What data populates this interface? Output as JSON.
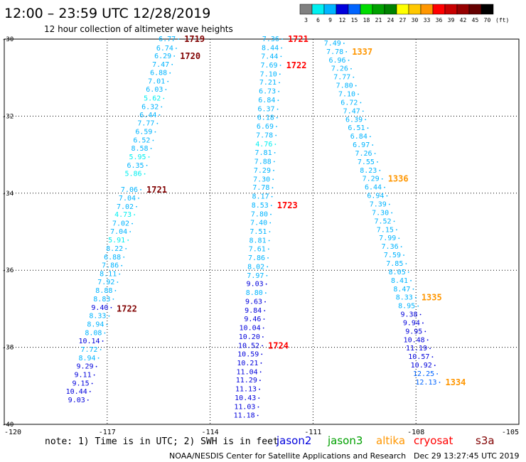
{
  "header": {
    "title": "12:00 – 23:59 UTC 12/28/2019",
    "subtitle": "12 hour collection of altimeter wave heights"
  },
  "color_scale": {
    "unit": "(ft)",
    "ticks": [
      "3",
      "6",
      "9",
      "12",
      "15",
      "18",
      "21",
      "24",
      "27",
      "30",
      "33",
      "36",
      "39",
      "42",
      "45",
      "70"
    ],
    "colors": [
      "#808080",
      "#00f0f0",
      "#00b4ff",
      "#0000dc",
      "#0064ff",
      "#00dc00",
      "#00a000",
      "#008200",
      "#ffff00",
      "#ffc800",
      "#ff9600",
      "#ff0000",
      "#c80000",
      "#960000",
      "#640000",
      "#000000"
    ]
  },
  "footer": {
    "note": "note: 1) Time is in UTC; 2) SWH is in feet",
    "legend": [
      {
        "name": "jason2",
        "color": "#0000dc"
      },
      {
        "name": "jason3",
        "color": "#00a000"
      },
      {
        "name": "altika",
        "color": "#ff9600"
      },
      {
        "name": "cryosat",
        "color": "#ff0000"
      },
      {
        "name": "s3a",
        "color": "#800000"
      }
    ],
    "credit": "NOAA/NESDIS Center for Satellite Applications and Research",
    "timestamp": "Dec 29 13:27:45 UTC 2019"
  },
  "chart_data": {
    "type": "scatter",
    "title": "12:00 – 23:59 UTC 12/28/2019",
    "subtitle": "12 hour collection of altimeter wave heights",
    "xlim": [
      -120,
      -105
    ],
    "ylim": [
      -40,
      -30
    ],
    "x_ticks": [
      -120,
      -117,
      -114,
      -111,
      -108,
      -105
    ],
    "x_tick_labels": [
      "-120",
      "-117",
      "-114",
      "-111",
      "-108",
      "-105"
    ],
    "y_ticks": [
      -30,
      -32,
      -34,
      -36,
      -38,
      -40
    ],
    "y_tick_labels": [
      "-30",
      "-32",
      "-34",
      "-36",
      "-38",
      "-40"
    ],
    "grid": true,
    "color_by_swh": [
      {
        "max": 6,
        "color": "#00f0f0"
      },
      {
        "max": 9,
        "color": "#00b4ff"
      },
      {
        "max": 12,
        "color": "#0000dc"
      },
      {
        "max": 15,
        "color": "#0064ff"
      },
      {
        "max": 18,
        "color": "#00dc00"
      }
    ],
    "tracks": [
      {
        "lon_start": -114.92,
        "lon_end": -117.56,
        "points": [
          {
            "lat": -30.0,
            "swh": "6.77"
          },
          {
            "lat": -30.24,
            "swh": "6.74"
          },
          {
            "lat": -30.44,
            "swh": "6.29"
          },
          {
            "lat": -30.66,
            "swh": "7.47"
          },
          {
            "lat": -30.88,
            "swh": "6.88"
          },
          {
            "lat": -31.1,
            "swh": "7.01"
          },
          {
            "lat": -31.31,
            "swh": "6.03"
          },
          {
            "lat": -31.54,
            "swh": "5.62"
          },
          {
            "lat": -31.76,
            "swh": "6.32"
          },
          {
            "lat": -31.97,
            "swh": "6.44"
          },
          {
            "lat": -32.19,
            "swh": "7.77"
          },
          {
            "lat": -32.41,
            "swh": "6.59"
          },
          {
            "lat": -32.63,
            "swh": "6.52"
          },
          {
            "lat": -32.84,
            "swh": "8.58"
          },
          {
            "lat": -33.06,
            "swh": "5.95"
          },
          {
            "lat": -33.28,
            "swh": "6.35"
          },
          {
            "lat": -33.5,
            "swh": "5.86"
          },
          {
            "lat": -33.91,
            "swh": "7.06"
          },
          {
            "lat": -34.13,
            "swh": "7.04"
          },
          {
            "lat": -34.35,
            "swh": "7.02"
          },
          {
            "lat": -34.56,
            "swh": "4.73"
          },
          {
            "lat": -34.79,
            "swh": "7.02"
          },
          {
            "lat": -35.0,
            "swh": "7.04"
          },
          {
            "lat": -35.22,
            "swh": "5.91"
          },
          {
            "lat": -35.44,
            "swh": "8.22"
          },
          {
            "lat": -35.66,
            "swh": "6.88"
          },
          {
            "lat": -35.88,
            "swh": "7.86"
          },
          {
            "lat": -36.1,
            "swh": "8.11"
          },
          {
            "lat": -36.31,
            "swh": "7.92"
          },
          {
            "lat": -36.53,
            "swh": "8.88"
          },
          {
            "lat": -36.75,
            "swh": "8.83"
          },
          {
            "lat": -36.97,
            "swh": "9.40"
          },
          {
            "lat": -37.19,
            "swh": "8.33"
          },
          {
            "lat": -37.41,
            "swh": "8.94"
          },
          {
            "lat": -37.63,
            "swh": "8.08"
          },
          {
            "lat": -37.84,
            "swh": "10.14"
          },
          {
            "lat": -38.06,
            "swh": "7.72"
          },
          {
            "lat": -38.28,
            "swh": "8.94"
          },
          {
            "lat": -38.5,
            "swh": "9.29"
          },
          {
            "lat": -38.72,
            "swh": "9.11"
          },
          {
            "lat": -38.94,
            "swh": "9.15"
          },
          {
            "lat": -39.15,
            "swh": "10.44"
          },
          {
            "lat": -39.37,
            "swh": "9.03"
          }
        ],
        "times": [
          {
            "lat": -30.0,
            "label": "1719",
            "color": "#800000"
          },
          {
            "lat": -30.44,
            "label": "1720",
            "color": "#800000"
          },
          {
            "lat": -33.91,
            "label": "1721",
            "color": "#800000"
          },
          {
            "lat": -37.0,
            "label": "1722",
            "color": "#800000"
          }
        ]
      },
      {
        "lon_start": -111.9,
        "lon_end": -112.61,
        "points": [
          {
            "lat": -30.0,
            "swh": "7.36"
          },
          {
            "lat": -30.23,
            "swh": "8.44"
          },
          {
            "lat": -30.45,
            "swh": "7.44"
          },
          {
            "lat": -30.68,
            "swh": "7.69"
          },
          {
            "lat": -30.91,
            "swh": "7.10"
          },
          {
            "lat": -31.13,
            "swh": "7.21"
          },
          {
            "lat": -31.36,
            "swh": "6.73"
          },
          {
            "lat": -31.59,
            "swh": "6.84"
          },
          {
            "lat": -31.82,
            "swh": "6.37"
          },
          {
            "lat": -32.04,
            "swh": "6.18"
          },
          {
            "lat": -32.27,
            "swh": "6.69"
          },
          {
            "lat": -32.5,
            "swh": "7.78"
          },
          {
            "lat": -32.73,
            "swh": "4.76"
          },
          {
            "lat": -32.95,
            "swh": "7.81"
          },
          {
            "lat": -33.18,
            "swh": "7.88"
          },
          {
            "lat": -33.41,
            "swh": "7.29"
          },
          {
            "lat": -33.64,
            "swh": "7.30"
          },
          {
            "lat": -33.86,
            "swh": "7.78"
          },
          {
            "lat": -34.09,
            "swh": "8.17"
          },
          {
            "lat": -34.32,
            "swh": "8.53"
          },
          {
            "lat": -34.55,
            "swh": "7.80"
          },
          {
            "lat": -34.77,
            "swh": "7.40"
          },
          {
            "lat": -35.0,
            "swh": "7.51"
          },
          {
            "lat": -35.23,
            "swh": "8.81"
          },
          {
            "lat": -35.45,
            "swh": "7.61"
          },
          {
            "lat": -35.68,
            "swh": "7.86"
          },
          {
            "lat": -35.91,
            "swh": "8.02"
          },
          {
            "lat": -36.14,
            "swh": "7.97"
          },
          {
            "lat": -36.36,
            "swh": "9.03"
          },
          {
            "lat": -36.59,
            "swh": "8.80"
          },
          {
            "lat": -36.82,
            "swh": "9.63"
          },
          {
            "lat": -37.05,
            "swh": "9.84"
          },
          {
            "lat": -37.27,
            "swh": "9.46"
          },
          {
            "lat": -37.5,
            "swh": "10.04"
          },
          {
            "lat": -37.73,
            "swh": "10.20"
          },
          {
            "lat": -37.96,
            "swh": "10.52"
          },
          {
            "lat": -38.18,
            "swh": "10.59"
          },
          {
            "lat": -38.41,
            "swh": "10.21"
          },
          {
            "lat": -38.64,
            "swh": "11.04"
          },
          {
            "lat": -38.86,
            "swh": "11.29"
          },
          {
            "lat": -39.09,
            "swh": "11.13"
          },
          {
            "lat": -39.32,
            "swh": "10.43"
          },
          {
            "lat": -39.55,
            "swh": "11.03"
          },
          {
            "lat": -39.77,
            "swh": "11.18"
          }
        ],
        "times": [
          {
            "lat": -30.0,
            "label": "1721",
            "color": "#ff0000"
          },
          {
            "lat": -30.68,
            "label": "1722",
            "color": "#ff0000"
          },
          {
            "lat": -34.32,
            "label": "1723",
            "color": "#ff0000"
          },
          {
            "lat": -37.96,
            "label": "1724",
            "color": "#ff0000"
          }
        ]
      },
      {
        "lon_start": -110.1,
        "lon_end": -107.31,
        "points": [
          {
            "lat": -30.11,
            "swh": "7.49"
          },
          {
            "lat": -30.33,
            "swh": "7.78"
          },
          {
            "lat": -30.55,
            "swh": "6.96"
          },
          {
            "lat": -30.77,
            "swh": "7.26"
          },
          {
            "lat": -30.99,
            "swh": "7.77"
          },
          {
            "lat": -31.21,
            "swh": "7.80"
          },
          {
            "lat": -31.43,
            "swh": "7.10"
          },
          {
            "lat": -31.65,
            "swh": "6.72"
          },
          {
            "lat": -31.87,
            "swh": "7.47"
          },
          {
            "lat": -32.09,
            "swh": "6.39"
          },
          {
            "lat": -32.31,
            "swh": "6.51"
          },
          {
            "lat": -32.53,
            "swh": "6.84"
          },
          {
            "lat": -32.75,
            "swh": "6.97"
          },
          {
            "lat": -32.97,
            "swh": "7.26"
          },
          {
            "lat": -33.19,
            "swh": "7.55"
          },
          {
            "lat": -33.41,
            "swh": "8.23"
          },
          {
            "lat": -33.63,
            "swh": "7.29"
          },
          {
            "lat": -33.85,
            "swh": "6.44"
          },
          {
            "lat": -34.07,
            "swh": "6.94"
          },
          {
            "lat": -34.29,
            "swh": "7.39"
          },
          {
            "lat": -34.51,
            "swh": "7.30"
          },
          {
            "lat": -34.73,
            "swh": "7.52"
          },
          {
            "lat": -34.95,
            "swh": "7.15"
          },
          {
            "lat": -35.17,
            "swh": "7.99"
          },
          {
            "lat": -35.39,
            "swh": "7.36"
          },
          {
            "lat": -35.61,
            "swh": "7.59"
          },
          {
            "lat": -35.83,
            "swh": "7.85"
          },
          {
            "lat": -36.05,
            "swh": "8.05"
          },
          {
            "lat": -36.27,
            "swh": "8.41"
          },
          {
            "lat": -36.49,
            "swh": "8.47"
          },
          {
            "lat": -36.71,
            "swh": "8.33"
          },
          {
            "lat": -36.93,
            "swh": "8.95"
          },
          {
            "lat": -37.15,
            "swh": "9.38"
          },
          {
            "lat": -37.37,
            "swh": "9.94"
          },
          {
            "lat": -37.59,
            "swh": "9.95"
          },
          {
            "lat": -37.81,
            "swh": "10.48"
          },
          {
            "lat": -38.03,
            "swh": "11.19"
          },
          {
            "lat": -38.25,
            "swh": "10.57"
          },
          {
            "lat": -38.47,
            "swh": "10.92"
          },
          {
            "lat": -38.69,
            "swh": "12.25"
          },
          {
            "lat": -38.91,
            "swh": "12.13"
          }
        ],
        "times": [
          {
            "lat": -30.33,
            "label": "1337",
            "color": "#ff9600"
          },
          {
            "lat": -33.63,
            "label": "1336",
            "color": "#ff9600"
          },
          {
            "lat": -36.71,
            "label": "1335",
            "color": "#ff9600"
          },
          {
            "lat": -38.91,
            "label": "1334",
            "color": "#ff9600"
          }
        ]
      }
    ]
  }
}
